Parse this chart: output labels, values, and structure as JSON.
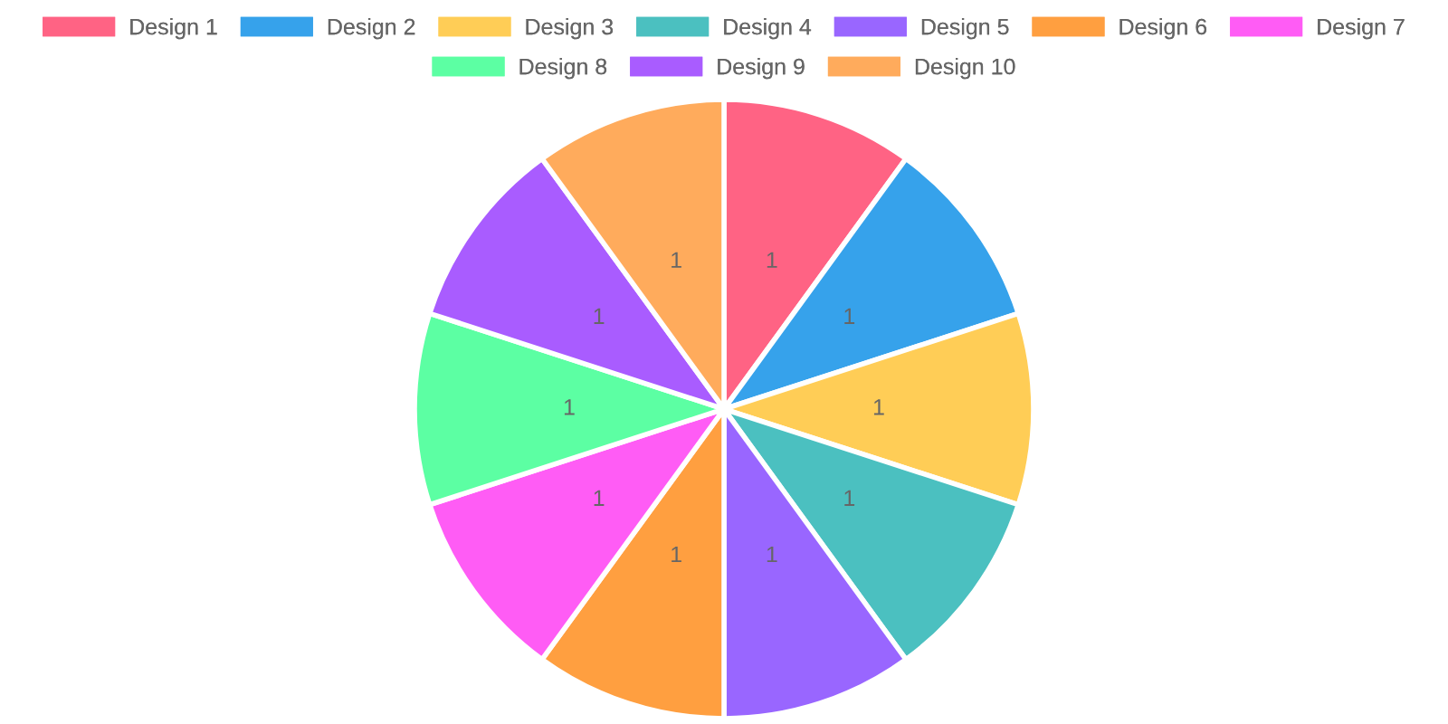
{
  "chart_data": {
    "type": "pie",
    "categories": [
      "Design 1",
      "Design 2",
      "Design 3",
      "Design 4",
      "Design 5",
      "Design 6",
      "Design 7",
      "Design 8",
      "Design 9",
      "Design 10"
    ],
    "values": [
      1,
      1,
      1,
      1,
      1,
      1,
      1,
      1,
      1,
      1
    ],
    "colors": [
      "#ff6384",
      "#36a2eb",
      "#ffcd56",
      "#4bc0c0",
      "#9966ff",
      "#ff9f40",
      "#ff5cf5",
      "#5cffa3",
      "#a95cff",
      "#ffab5c"
    ],
    "data_labels": true,
    "legend": "top"
  }
}
